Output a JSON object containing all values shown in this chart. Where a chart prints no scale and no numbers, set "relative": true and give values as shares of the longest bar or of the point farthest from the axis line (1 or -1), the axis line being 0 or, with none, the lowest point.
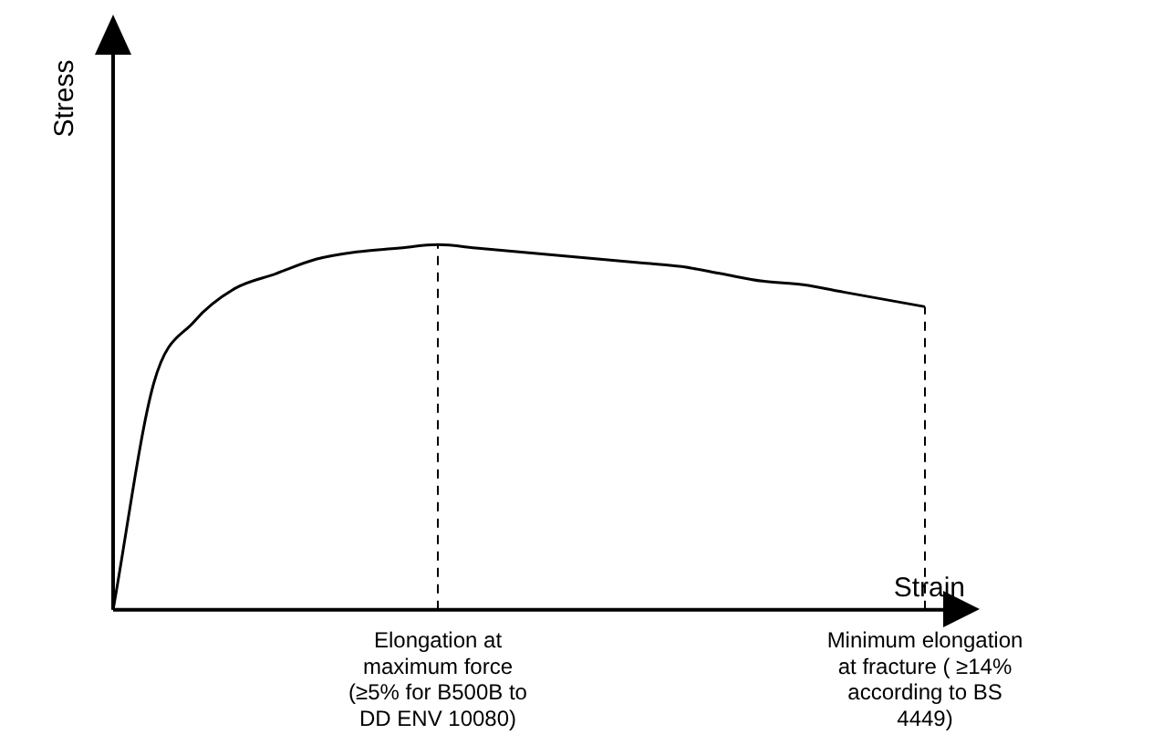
{
  "chart_data": {
    "type": "line",
    "relative": true,
    "xlabel": "Strain",
    "ylabel": "Stress",
    "categories": [
      null,
      null,
      null,
      null,
      null,
      null,
      null,
      null,
      "Elongation at maximum force (≥5% for B500B to DD ENV 10080)",
      null,
      null,
      null,
      null,
      null,
      null,
      null,
      null,
      null,
      null,
      null,
      "Minimum elongation at fracture ( ≥14% according to BS 4449)"
    ],
    "series": [
      {
        "color": "#000000",
        "values": [
          0,
          0.62,
          0.79,
          0.88,
          0.92,
          0.96,
          0.98,
          0.99,
          1,
          0.99,
          0.98,
          0.97,
          0.96,
          0.95,
          0.94,
          0.92,
          0.9,
          0.89,
          0.87,
          0.85,
          0.83
        ]
      }
    ],
    "ref_lines": [
      {
        "axis": "x",
        "value": "Elongation at maximum force (≥5% for B500B to DD ENV 10080)",
        "color": "#000000",
        "line_style": "dashed"
      },
      {
        "axis": "x",
        "value": "Minimum elongation at fracture ( ≥14% according to BS 4449)",
        "color": "#000000",
        "line_style": "dashed"
      }
    ],
    "grid": false,
    "legend": false,
    "marker": "none",
    "line_style": "solid"
  }
}
